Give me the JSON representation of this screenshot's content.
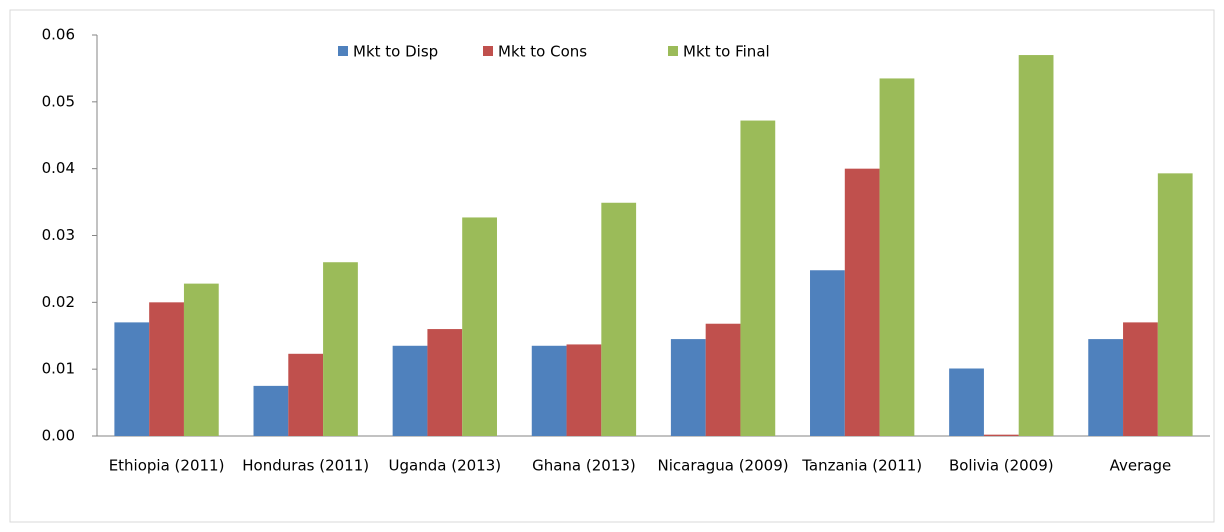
{
  "chart_data": {
    "type": "bar",
    "categories": [
      "Ethiopia (2011)",
      "Honduras (2011)",
      "Uganda (2013)",
      "Ghana (2013)",
      "Nicaragua (2009)",
      "Tanzania (2011)",
      "Bolivia (2009)",
      "Average"
    ],
    "series": [
      {
        "name": "Mkt to Disp",
        "color": "#4f81bd",
        "values": [
          0.017,
          0.0075,
          0.0135,
          0.0135,
          0.0145,
          0.0248,
          0.0101,
          0.0145
        ]
      },
      {
        "name": "Mkt to Cons",
        "color": "#c0504d",
        "values": [
          0.02,
          0.0123,
          0.016,
          0.0137,
          0.0168,
          0.04,
          0.0002,
          0.017
        ]
      },
      {
        "name": "Mkt to Final",
        "color": "#9bbb59",
        "values": [
          0.0228,
          0.026,
          0.0327,
          0.0349,
          0.0472,
          0.0535,
          0.057,
          0.0393
        ]
      }
    ],
    "ylim": [
      0,
      0.06
    ],
    "yticks": [
      {
        "value": 0,
        "label": "0.00"
      },
      0.01,
      0.02,
      0.03,
      0.04,
      0.05,
      0.06
    ],
    "legend": "top"
  }
}
